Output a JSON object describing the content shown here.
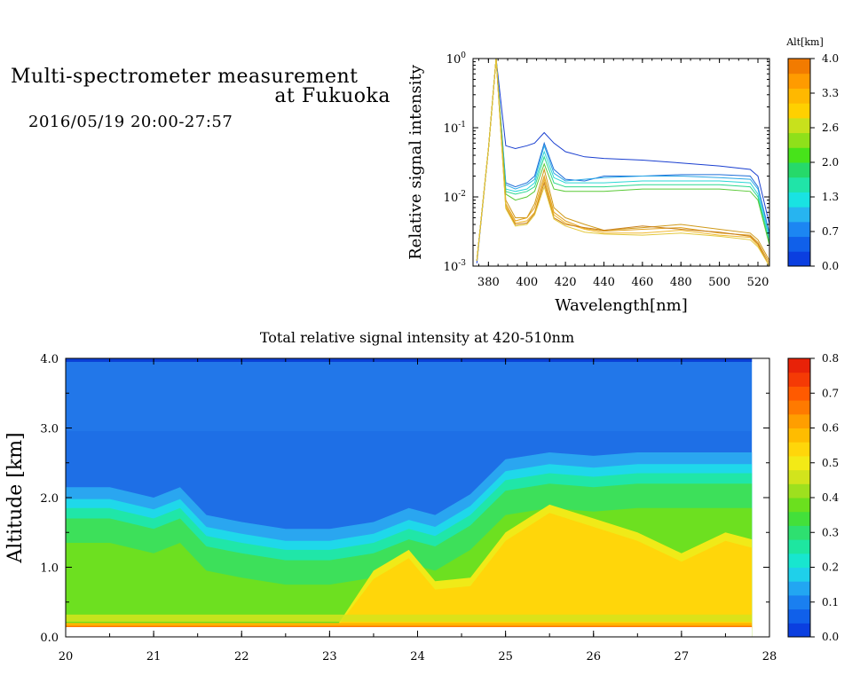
{
  "header": {
    "title_line1": "Multi-spectrometer measurement",
    "title_line2": "at Fukuoka",
    "period": "2016/05/19 20:00-27:57"
  },
  "colors": {
    "altitude_scale": [
      "#0b3fe0",
      "#1060ea",
      "#1c86f2",
      "#27b4f0",
      "#19e3e2",
      "#20e4a8",
      "#26d96a",
      "#47e31a",
      "#8fe01a",
      "#c8e11c",
      "#ffd000",
      "#ffb800",
      "#ff9b00",
      "#f27b00"
    ],
    "intensity_scale": [
      "#0b3fe0",
      "#1060ea",
      "#1a7ff0",
      "#22a6f2",
      "#1fd0ea",
      "#18e6cf",
      "#1ee6a0",
      "#2ee070",
      "#43e03a",
      "#6be01e",
      "#9ee01e",
      "#d2e41c",
      "#f3ea16",
      "#ffd60a",
      "#ffbc00",
      "#ff9e00",
      "#ff7a00",
      "#ff5a00",
      "#f53a05",
      "#e82208"
    ]
  },
  "chart_data": [
    {
      "type": "line",
      "title": "",
      "xlabel": "Wavelength[nm]",
      "ylabel": "Relative signal intensity",
      "xlim": [
        372,
        526
      ],
      "ylim": [
        0.001,
        1
      ],
      "y_scale": "log",
      "x_ticks": [
        380,
        400,
        420,
        440,
        460,
        480,
        500,
        520
      ],
      "x_tick_labels": [
        "380",
        "400",
        "420",
        "440",
        "460",
        "480",
        "500",
        "520"
      ],
      "y_ticks": [
        0.001,
        0.01,
        0.1,
        1
      ],
      "y_tick_labels": [
        {
          "base": "10",
          "exp": "-3"
        },
        {
          "base": "10",
          "exp": "-2"
        },
        {
          "base": "10",
          "exp": "-1"
        },
        {
          "base": "10",
          "exp": "0"
        }
      ],
      "x": [
        374,
        380,
        384,
        389,
        394,
        400,
        404,
        409,
        414,
        420,
        430,
        440,
        460,
        480,
        500,
        516,
        520,
        526
      ],
      "colorbar": {
        "label": "Alt[km]",
        "tick_labels": [
          "4.0",
          "3.3",
          "2.6",
          "2.0",
          "1.3",
          "0.7",
          "0.0"
        ]
      },
      "series": [
        {
          "color": "#1a3fd0",
          "values": [
            0.0011,
            0.05,
            1.0,
            0.055,
            0.05,
            0.055,
            0.06,
            0.085,
            0.06,
            0.045,
            0.038,
            0.036,
            0.034,
            0.031,
            0.028,
            0.025,
            0.02,
            0.004
          ]
        },
        {
          "color": "#1f6ed8",
          "values": [
            0.0012,
            0.05,
            1.0,
            0.016,
            0.014,
            0.016,
            0.02,
            0.06,
            0.025,
            0.018,
            0.017,
            0.02,
            0.02,
            0.021,
            0.021,
            0.02,
            0.014,
            0.003
          ]
        },
        {
          "color": "#2aa8e6",
          "values": [
            0.0012,
            0.05,
            1.0,
            0.015,
            0.013,
            0.015,
            0.018,
            0.055,
            0.022,
            0.017,
            0.018,
            0.019,
            0.02,
            0.02,
            0.019,
            0.018,
            0.013,
            0.0028
          ]
        },
        {
          "color": "#2ad7d4",
          "values": [
            0.0012,
            0.05,
            1.0,
            0.013,
            0.012,
            0.013,
            0.016,
            0.045,
            0.019,
            0.016,
            0.016,
            0.016,
            0.017,
            0.017,
            0.017,
            0.016,
            0.011,
            0.0025
          ]
        },
        {
          "color": "#2bd88f",
          "values": [
            0.0012,
            0.05,
            1.0,
            0.012,
            0.011,
            0.012,
            0.014,
            0.038,
            0.016,
            0.014,
            0.014,
            0.014,
            0.015,
            0.015,
            0.015,
            0.014,
            0.01,
            0.0022
          ]
        },
        {
          "color": "#5ac936",
          "values": [
            0.0012,
            0.05,
            1.0,
            0.011,
            0.009,
            0.01,
            0.012,
            0.03,
            0.013,
            0.012,
            0.012,
            0.012,
            0.013,
            0.013,
            0.013,
            0.012,
            0.009,
            0.002
          ]
        },
        {
          "color": "#d09a1a",
          "values": [
            0.0012,
            0.05,
            1.0,
            0.009,
            0.005,
            0.005,
            0.008,
            0.025,
            0.007,
            0.005,
            0.004,
            0.0033,
            0.0036,
            0.004,
            0.0034,
            0.003,
            0.0024,
            0.0012
          ]
        },
        {
          "color": "#e0a020",
          "values": [
            0.0012,
            0.05,
            1.0,
            0.008,
            0.0045,
            0.005,
            0.007,
            0.02,
            0.006,
            0.0045,
            0.0035,
            0.0032,
            0.0034,
            0.0036,
            0.003,
            0.0028,
            0.0022,
            0.0011
          ]
        },
        {
          "color": "#f0b830",
          "values": [
            0.0012,
            0.05,
            1.0,
            0.0075,
            0.0042,
            0.0045,
            0.006,
            0.018,
            0.0055,
            0.0042,
            0.0034,
            0.003,
            0.003,
            0.0033,
            0.0028,
            0.0026,
            0.002,
            0.001
          ]
        },
        {
          "color": "#c97f1a",
          "values": [
            0.0012,
            0.05,
            1.0,
            0.007,
            0.004,
            0.0042,
            0.0058,
            0.016,
            0.005,
            0.004,
            0.0036,
            0.0033,
            0.0038,
            0.0034,
            0.0031,
            0.0027,
            0.0021,
            0.001
          ]
        },
        {
          "color": "#e3c83a",
          "values": [
            0.0012,
            0.05,
            1.0,
            0.0068,
            0.0038,
            0.004,
            0.0055,
            0.014,
            0.0048,
            0.0038,
            0.0031,
            0.0029,
            0.0028,
            0.003,
            0.0027,
            0.0024,
            0.0019,
            0.001
          ]
        }
      ]
    },
    {
      "type": "heatmap",
      "title": "Total relative signal intensity at 420-510nm",
      "xlabel": "",
      "ylabel": "Altitude [km]",
      "xlim": [
        20,
        28
      ],
      "ylim": [
        0,
        4
      ],
      "data_x_range": [
        20,
        27.8
      ],
      "x_ticks": [
        20,
        21,
        22,
        23,
        24,
        25,
        26,
        27,
        28
      ],
      "x_tick_labels": [
        "20",
        "21",
        "22",
        "23",
        "24",
        "25",
        "26",
        "27",
        "28"
      ],
      "y_ticks": [
        0,
        1,
        2,
        3,
        4
      ],
      "y_tick_labels": [
        "0.0",
        "1.0",
        "2.0",
        "3.0",
        "4.0"
      ],
      "colorbar": {
        "range": [
          0,
          0.8
        ],
        "tick_labels": [
          "0.8",
          "0.7",
          "0.6",
          "0.5",
          "0.4",
          "0.3",
          "0.2",
          "0.1",
          "0.0"
        ]
      },
      "time": [
        20.0,
        20.5,
        21.0,
        21.3,
        21.6,
        22.0,
        22.5,
        23.0,
        23.5,
        23.9,
        24.2,
        24.6,
        25.0,
        25.5,
        26.0,
        26.5,
        27.0,
        27.5,
        27.8
      ],
      "boundary_altitude_km": [
        1.9,
        1.9,
        1.75,
        1.9,
        1.5,
        1.4,
        1.3,
        1.3,
        1.4,
        1.6,
        1.5,
        1.8,
        2.3,
        2.4,
        2.35,
        2.4,
        2.4,
        2.4,
        2.4
      ],
      "yellow_layer_top_km": [
        0.0,
        0.0,
        0.0,
        0.0,
        0.0,
        0.0,
        0.0,
        0.0,
        0.95,
        1.25,
        0.8,
        0.85,
        1.5,
        1.9,
        1.7,
        1.5,
        1.2,
        1.5,
        1.4
      ]
    }
  ]
}
